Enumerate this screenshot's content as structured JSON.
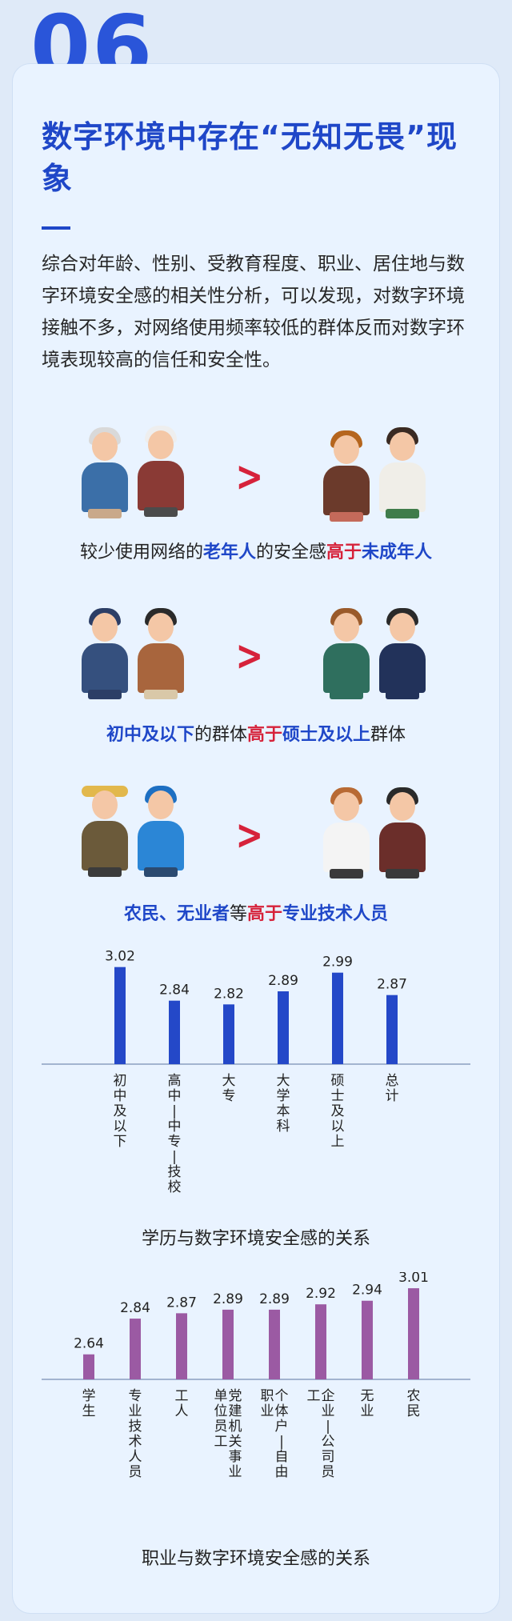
{
  "section_number": "06",
  "title": "数字环境中存在“无知无畏”现象",
  "intro": "综合对年龄、性别、受教育程度、职业、居住地与数字环境安全感的相关性分析，可以发现，对数字环境接触不多，对网络使用频率较低的群体反而对数字环境表现较高的信任和安全性。",
  "gt_symbol": ">",
  "comparisons": [
    {
      "parts": [
        {
          "text": "较少使用网络的",
          "style": "n"
        },
        {
          "text": "老年人",
          "style": "b"
        },
        {
          "text": "的安全感",
          "style": "n"
        },
        {
          "text": "高于",
          "style": "r"
        },
        {
          "text": "未成年人",
          "style": "b"
        }
      ]
    },
    {
      "parts": [
        {
          "text": "初中及以下",
          "style": "b"
        },
        {
          "text": "的群体",
          "style": "n"
        },
        {
          "text": "高于",
          "style": "r"
        },
        {
          "text": "硕士及以上",
          "style": "b"
        },
        {
          "text": "群体",
          "style": "n"
        }
      ]
    },
    {
      "parts": [
        {
          "text": "农民、无业者",
          "style": "b"
        },
        {
          "text": "等",
          "style": "n"
        },
        {
          "text": "高于",
          "style": "r"
        },
        {
          "text": "专业技术人员",
          "style": "b"
        }
      ]
    }
  ],
  "colors": {
    "edu_bar": "#2448c8",
    "job_bar": "#9b5aa3",
    "accent_red": "#d6223a",
    "accent_blue": "#1f47c8"
  },
  "chart_data": [
    {
      "type": "bar",
      "title": "学历与数字环境安全感的关系",
      "categories": [
        "初中及以下",
        "高中—中专—技校",
        "大专",
        "大学本科",
        "硕士及以上",
        "总计"
      ],
      "values": [
        3.02,
        2.84,
        2.82,
        2.89,
        2.99,
        2.87
      ],
      "value_labels": [
        "3.02",
        "2.84",
        "2.82",
        "2.89",
        "2.99",
        "2.87"
      ],
      "ylim": [
        2.5,
        3.1
      ],
      "orientation": "vertical-labels"
    },
    {
      "type": "bar",
      "title": "职业与数字环境安全感的关系",
      "categories": [
        "学生",
        "专业技术人员",
        "工人",
        "党建机关事业单位员工",
        "个体户—自由职业",
        "企业—公司员工",
        "无业",
        "农民"
      ],
      "values": [
        2.64,
        2.84,
        2.87,
        2.89,
        2.89,
        2.92,
        2.94,
        3.01
      ],
      "value_labels": [
        "2.64",
        "2.84",
        "2.87",
        "2.89",
        "2.89",
        "2.92",
        "2.94",
        "3.01"
      ],
      "ylim": [
        2.5,
        3.1
      ],
      "orientation": "vertical-labels"
    }
  ]
}
